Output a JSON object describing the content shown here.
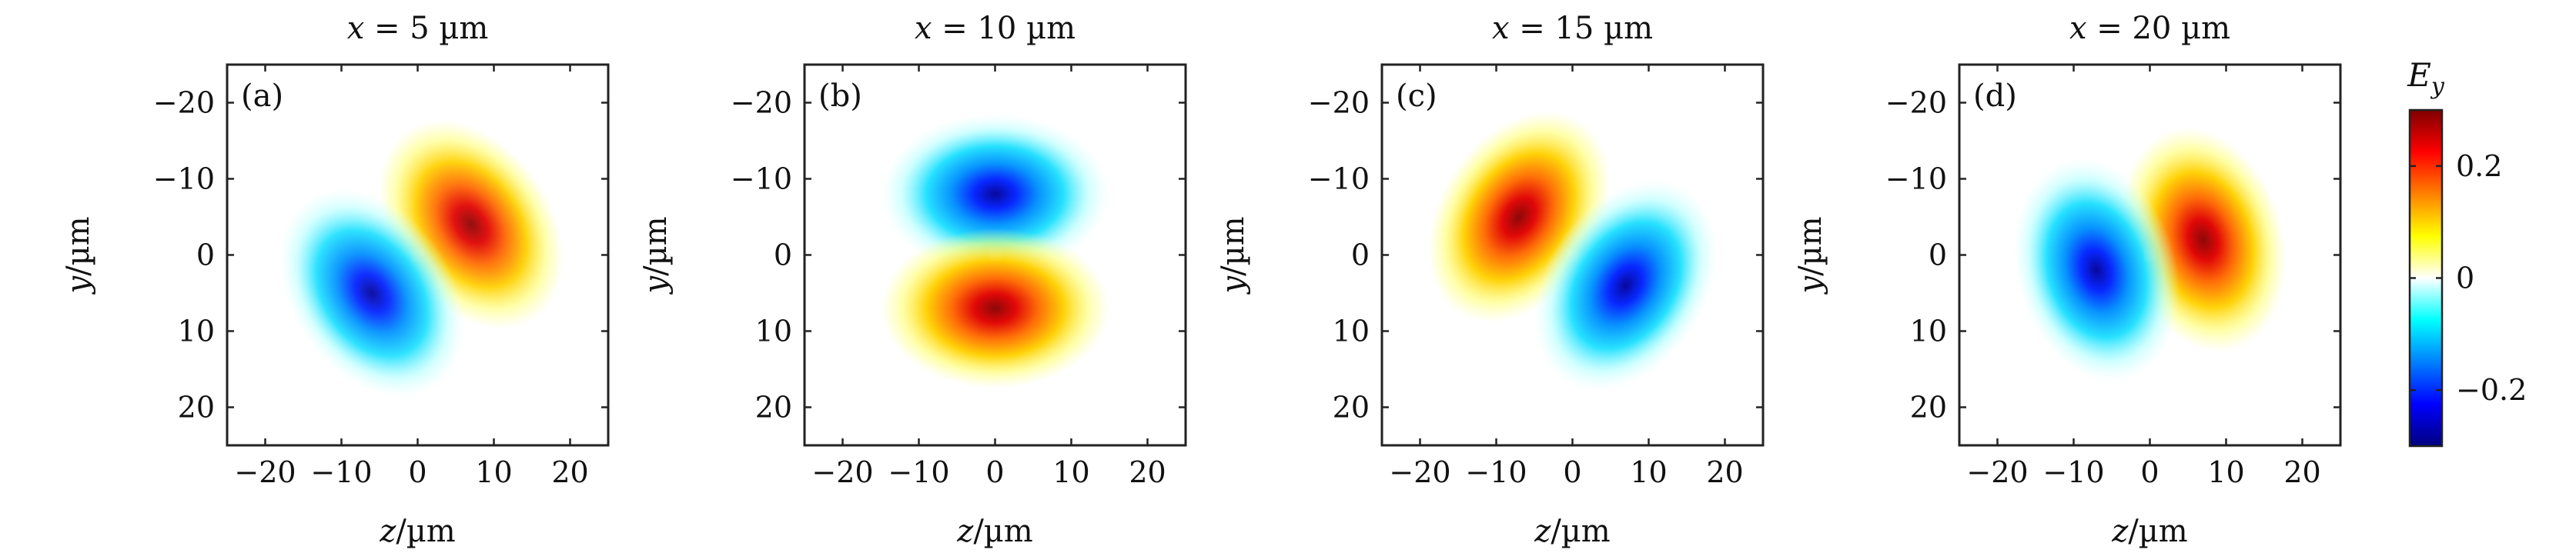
{
  "chart_data": {
    "type": "heatmap",
    "x_range": [
      -25,
      25
    ],
    "y_range": [
      -25,
      25
    ],
    "y_inverted": true,
    "xticks": [
      -20,
      -10,
      0,
      10,
      20
    ],
    "yticks": [
      -20,
      -10,
      0,
      10,
      20
    ],
    "x_tick_labels": [
      "−20",
      "−10",
      "0",
      "10",
      "20"
    ],
    "y_tick_labels": [
      "−20",
      "−10",
      "0",
      "10",
      "20"
    ],
    "xlabel": {
      "var": "z",
      "unit": "/µm"
    },
    "ylabel": {
      "var": "y",
      "unit": "/µm"
    },
    "unit_text": "µm",
    "panels": [
      {
        "tag": "(a)",
        "title_var": "x",
        "title_eq": " = 5 µm",
        "x_position_um": 5,
        "lobes": [
          {
            "polarity": "positive",
            "z": 7,
            "y": -4,
            "amplitude": 0.28
          },
          {
            "polarity": "negative",
            "z": -6,
            "y": 5,
            "amplitude": -0.28
          }
        ]
      },
      {
        "tag": "(b)",
        "title_var": "x",
        "title_eq": " = 10 µm",
        "x_position_um": 10,
        "lobes": [
          {
            "polarity": "negative",
            "z": 0,
            "y": -8,
            "amplitude": -0.29
          },
          {
            "polarity": "positive",
            "z": 0,
            "y": 7,
            "amplitude": 0.29
          }
        ]
      },
      {
        "tag": "(c)",
        "title_var": "x",
        "title_eq": " = 15 µm",
        "x_position_um": 15,
        "lobes": [
          {
            "polarity": "positive",
            "z": -7,
            "y": -5,
            "amplitude": 0.29
          },
          {
            "polarity": "negative",
            "z": 7,
            "y": 4,
            "amplitude": -0.29
          }
        ]
      },
      {
        "tag": "(d)",
        "title_var": "x",
        "title_eq": " = 20 µm",
        "x_position_um": 20,
        "lobes": [
          {
            "polarity": "positive",
            "z": 7,
            "y": -2,
            "amplitude": 0.29
          },
          {
            "polarity": "negative",
            "z": -7,
            "y": 2,
            "amplitude": -0.29
          }
        ]
      }
    ],
    "colorbar": {
      "label_var": "E",
      "label_sub": "y",
      "range": [
        -0.3,
        0.3
      ],
      "ticks": [
        -0.2,
        0,
        0.2
      ],
      "tick_labels": [
        "−0.2",
        "0",
        "0.2"
      ],
      "colormap": "jet-white-center",
      "colors": [
        "#00007f",
        "#0000ff",
        "#0080ff",
        "#00ffff",
        "#ffffff",
        "#ffff00",
        "#ff8000",
        "#ff0000",
        "#7f0000"
      ]
    }
  }
}
